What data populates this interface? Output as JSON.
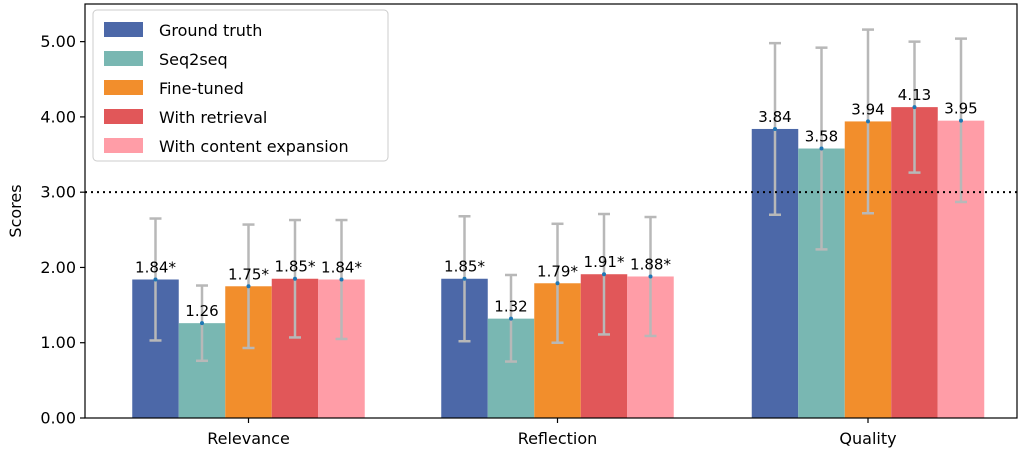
{
  "chart_data": {
    "type": "bar",
    "title": "",
    "xlabel": "",
    "ylabel": "Scores",
    "ylim": [
      0,
      5.5
    ],
    "yticks": [
      "0.00",
      "1.00",
      "2.00",
      "3.00",
      "4.00",
      "5.00"
    ],
    "categories": [
      "Relevance",
      "Reflection",
      "Quality"
    ],
    "reference_line": {
      "y": 3.0,
      "style": "dotted"
    },
    "grid": false,
    "legend_position": "top-left",
    "series": [
      {
        "name": "Ground truth",
        "color": "#4c68a8",
        "values": [
          1.84,
          1.85,
          3.84
        ],
        "error_low": [
          1.03,
          1.02,
          2.7
        ],
        "error_high": [
          2.65,
          2.68,
          4.98
        ],
        "labels": [
          "1.84*",
          "1.85*",
          "3.84"
        ]
      },
      {
        "name": "Seq2seq",
        "color": "#79b7b2",
        "values": [
          1.26,
          1.32,
          3.58
        ],
        "error_low": [
          0.76,
          0.75,
          2.24
        ],
        "error_high": [
          1.76,
          1.9,
          4.92
        ],
        "labels": [
          "1.26",
          "1.32",
          "3.58"
        ]
      },
      {
        "name": "Fine-tuned",
        "color": "#f28e2c",
        "values": [
          1.75,
          1.79,
          3.94
        ],
        "error_low": [
          0.93,
          1.0,
          2.72
        ],
        "error_high": [
          2.57,
          2.58,
          5.16
        ],
        "labels": [
          "1.75*",
          "1.79*",
          "3.94"
        ]
      },
      {
        "name": "With retrieval",
        "color": "#e15759",
        "values": [
          1.85,
          1.91,
          4.13
        ],
        "error_low": [
          1.07,
          1.11,
          3.26
        ],
        "error_high": [
          2.63,
          2.71,
          5.0
        ],
        "labels": [
          "1.85*",
          "1.91*",
          "4.13"
        ]
      },
      {
        "name": "With content expansion",
        "color": "#ff9da7",
        "values": [
          1.84,
          1.88,
          3.95
        ],
        "error_low": [
          1.05,
          1.09,
          2.87
        ],
        "error_high": [
          2.63,
          2.67,
          5.04
        ],
        "labels": [
          "1.84*",
          "1.88*",
          "3.95"
        ]
      }
    ]
  }
}
